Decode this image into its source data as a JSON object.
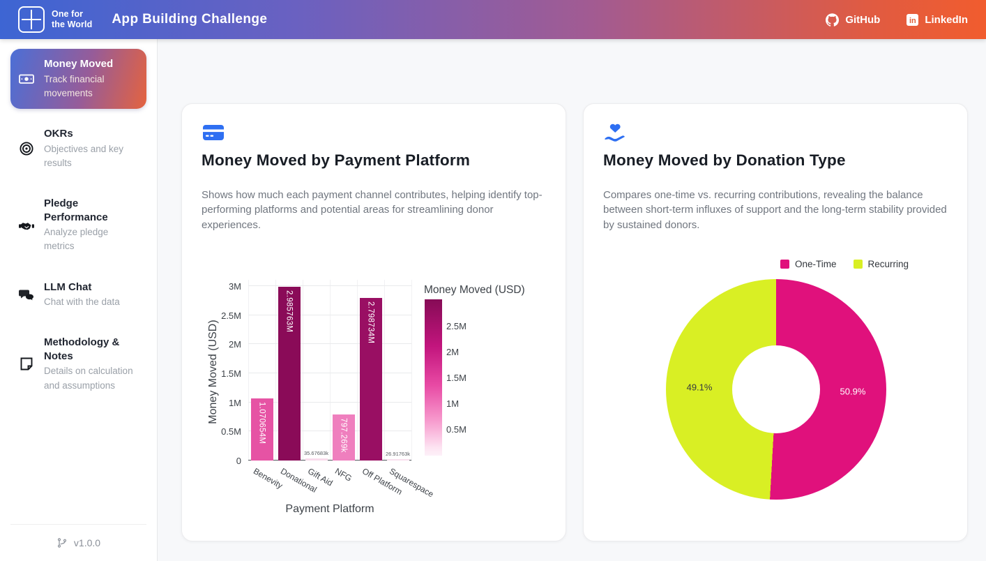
{
  "navbar": {
    "logo_line1": "One for",
    "logo_line2": "the World",
    "title": "App Building Challenge",
    "links": [
      {
        "label": "GitHub"
      },
      {
        "label": "LinkedIn"
      }
    ]
  },
  "sidebar": {
    "items": [
      {
        "title": "Money Moved",
        "subtitle": "Track financial movements",
        "selected": true
      },
      {
        "title": "OKRs",
        "subtitle": "Objectives and key results",
        "selected": false
      },
      {
        "title": "Pledge Performance",
        "subtitle": "Analyze pledge metrics",
        "selected": false
      },
      {
        "title": "LLM Chat",
        "subtitle": "Chat with the data",
        "selected": false
      },
      {
        "title": "Methodology & Notes",
        "subtitle": "Details on calculation and assumptions",
        "selected": false
      }
    ],
    "version": "v1.0.0"
  },
  "cards": [
    {
      "title": "Money Moved by Payment Platform",
      "description": "Shows how much each payment channel contributes, helping identify top-performing platforms and potential areas for streamlining donor experiences.",
      "icon": "credit-card-icon"
    },
    {
      "title": "Money Moved by Donation Type",
      "description": "Compares one-time vs. recurring contributions, revealing the balance between short-term influxes of support and the long-term stability provided by sustained donors.",
      "icon": "hand-holding-heart-icon"
    }
  ],
  "chart_data": [
    {
      "type": "bar",
      "title": "Money Moved by Payment Platform",
      "xlabel": "Payment Platform",
      "ylabel": "Money Moved (USD)",
      "categories": [
        "Benevity",
        "Donational",
        "Gift Aid",
        "NFG",
        "Off Platform",
        "Squarespace"
      ],
      "values": [
        1070654,
        2985763,
        35676.83,
        797269,
        2798734,
        26917.63
      ],
      "bar_labels": [
        "1.070654M",
        "2.985763M",
        "35.67683k",
        "797.269k",
        "2.798734M",
        "26.91763k"
      ],
      "bar_colors": [
        "#e653a4",
        "#8a0b58",
        "#f9dcec",
        "#ef7fbe",
        "#990f63",
        "#f9dfee"
      ],
      "ylim": [
        0,
        3000000
      ],
      "grid": true,
      "yticks": [
        {
          "label": "0",
          "value": 0
        },
        {
          "label": "0.5M",
          "value": 500000
        },
        {
          "label": "1M",
          "value": 1000000
        },
        {
          "label": "1.5M",
          "value": 1500000
        },
        {
          "label": "2M",
          "value": 2000000
        },
        {
          "label": "2.5M",
          "value": 2500000
        },
        {
          "label": "3M",
          "value": 3000000
        }
      ],
      "colorbar": {
        "title": "Money Moved (USD)",
        "vmax": 3030000,
        "gradient": [
          "#860b56 0%",
          "#c2157d 30%",
          "#e84aa4 55%",
          "#f79cce 78%",
          "#fde4f2 95%",
          "#fdf1f8 100%"
        ],
        "ticks": [
          {
            "label": "2.5M",
            "value": 2500000
          },
          {
            "label": "2M",
            "value": 2000000
          },
          {
            "label": "1.5M",
            "value": 1500000
          },
          {
            "label": "1M",
            "value": 1000000
          },
          {
            "label": "0.5M",
            "value": 500000
          }
        ]
      }
    },
    {
      "type": "pie",
      "title": "Money Moved by Donation Type",
      "hole": 0.4,
      "legend_position": "top",
      "slices": [
        {
          "label": "One-Time",
          "pct": 50.9,
          "display": "50.9%",
          "color": "#e0117c",
          "text_color": "#ffffff"
        },
        {
          "label": "Recurring",
          "pct": 49.1,
          "display": "49.1%",
          "color": "#d9ef24",
          "text_color": "#35393e"
        }
      ]
    }
  ]
}
